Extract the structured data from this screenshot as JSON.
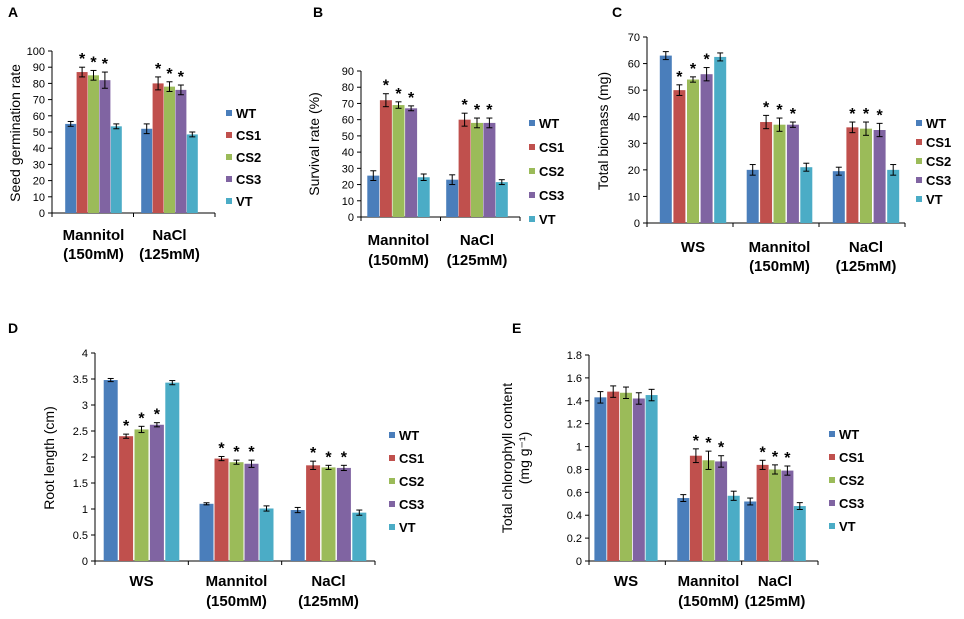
{
  "colors": {
    "WT": "#4A7EBB",
    "CS1": "#C0504D",
    "CS2": "#9BBB59",
    "CS3": "#8064A2",
    "VT": "#4BACC6",
    "axis": "#000000",
    "errorbar": "#000000"
  },
  "chart_data": [
    {
      "panel": "A",
      "type": "bar",
      "title": "",
      "xlabel": "",
      "ylabel": "Seed germination rate",
      "ylim": [
        0,
        100
      ],
      "ytick_step": 10,
      "yticks": [
        "0",
        "10",
        "20",
        "30",
        "40",
        "50",
        "60",
        "70",
        "80",
        "90",
        "100"
      ],
      "categories": [
        {
          "line1": "Mannitol",
          "line2": "(150mM)"
        },
        {
          "line1": "NaCl",
          "line2": "(125mM)"
        }
      ],
      "series": [
        {
          "name": "WT",
          "values": [
            55,
            52
          ],
          "errors": [
            1.5,
            3
          ]
        },
        {
          "name": "CS1",
          "values": [
            87,
            80
          ],
          "errors": [
            3,
            4
          ]
        },
        {
          "name": "CS2",
          "values": [
            85,
            78
          ],
          "errors": [
            3,
            3
          ]
        },
        {
          "name": "CS3",
          "values": [
            82,
            76
          ],
          "errors": [
            5,
            3
          ]
        },
        {
          "name": "VT",
          "values": [
            53.5,
            48.5
          ],
          "errors": [
            1.5,
            1.5
          ]
        }
      ],
      "significance": [
        {
          "series": "CS1",
          "category": 0,
          "label": "*"
        },
        {
          "series": "CS2",
          "category": 0,
          "label": "*"
        },
        {
          "series": "CS3",
          "category": 0,
          "label": "*"
        },
        {
          "series": "CS1",
          "category": 1,
          "label": "*"
        },
        {
          "series": "CS2",
          "category": 1,
          "label": "*"
        },
        {
          "series": "CS3",
          "category": 1,
          "label": "*"
        }
      ],
      "legend": [
        "WT",
        "CS1",
        "CS2",
        "CS3",
        "VT"
      ]
    },
    {
      "panel": "B",
      "type": "bar",
      "title": "",
      "xlabel": "",
      "ylabel": "Survival rate (%)",
      "ylim": [
        0,
        90
      ],
      "ytick_step": 10,
      "yticks": [
        "0",
        "10",
        "20",
        "30",
        "40",
        "50",
        "60",
        "70",
        "80",
        "90"
      ],
      "categories": [
        {
          "line1": "Mannitol",
          "line2": "(150mM)"
        },
        {
          "line1": "NaCl",
          "line2": "(125mM)"
        }
      ],
      "series": [
        {
          "name": "WT",
          "values": [
            25.5,
            23
          ],
          "errors": [
            3,
            3
          ]
        },
        {
          "name": "CS1",
          "values": [
            72,
            60
          ],
          "errors": [
            4,
            4
          ]
        },
        {
          "name": "CS2",
          "values": [
            69,
            58
          ],
          "errors": [
            2,
            3
          ]
        },
        {
          "name": "CS3",
          "values": [
            67,
            58
          ],
          "errors": [
            1.5,
            3
          ]
        },
        {
          "name": "VT",
          "values": [
            24.5,
            21.5
          ],
          "errors": [
            2,
            1.5
          ]
        }
      ],
      "significance": [
        {
          "series": "CS1",
          "category": 0,
          "label": "*"
        },
        {
          "series": "CS2",
          "category": 0,
          "label": "*"
        },
        {
          "series": "CS3",
          "category": 0,
          "label": "*"
        },
        {
          "series": "CS1",
          "category": 1,
          "label": "*"
        },
        {
          "series": "CS2",
          "category": 1,
          "label": "*"
        },
        {
          "series": "CS3",
          "category": 1,
          "label": "*"
        }
      ],
      "legend": [
        "WT",
        "CS1",
        "CS2",
        "CS3",
        "VT"
      ]
    },
    {
      "panel": "C",
      "type": "bar",
      "title": "",
      "xlabel": "",
      "ylabel": "Total biomass (mg)",
      "ylim": [
        0,
        70
      ],
      "ytick_step": 10,
      "yticks": [
        "0",
        "10",
        "20",
        "30",
        "40",
        "50",
        "60",
        "70"
      ],
      "categories": [
        {
          "line1": "WS",
          "line2": ""
        },
        {
          "line1": "Mannitol",
          "line2": "(150mM)"
        },
        {
          "line1": "NaCl",
          "line2": "(125mM)"
        }
      ],
      "series": [
        {
          "name": "WT",
          "values": [
            63,
            20,
            19.5
          ],
          "errors": [
            1.5,
            2,
            1.5
          ]
        },
        {
          "name": "CS1",
          "values": [
            50,
            38,
            36
          ],
          "errors": [
            2,
            2.5,
            2
          ]
        },
        {
          "name": "CS2",
          "values": [
            54,
            37,
            35.5
          ],
          "errors": [
            1,
            2.5,
            2.5
          ]
        },
        {
          "name": "CS3",
          "values": [
            56,
            37,
            35
          ],
          "errors": [
            2.5,
            1,
            2.5
          ]
        },
        {
          "name": "VT",
          "values": [
            62.5,
            21,
            20
          ],
          "errors": [
            1.5,
            1.5,
            2
          ]
        }
      ],
      "significance": [
        {
          "series": "CS1",
          "category": 0,
          "label": "*"
        },
        {
          "series": "CS2",
          "category": 0,
          "label": "*"
        },
        {
          "series": "CS3",
          "category": 0,
          "label": "*"
        },
        {
          "series": "CS1",
          "category": 1,
          "label": "*"
        },
        {
          "series": "CS2",
          "category": 1,
          "label": "*"
        },
        {
          "series": "CS3",
          "category": 1,
          "label": "*"
        },
        {
          "series": "CS1",
          "category": 2,
          "label": "*"
        },
        {
          "series": "CS2",
          "category": 2,
          "label": "*"
        },
        {
          "series": "CS3",
          "category": 2,
          "label": "*"
        }
      ],
      "legend": [
        "WT",
        "CS1",
        "CS2",
        "CS3",
        "VT"
      ]
    },
    {
      "panel": "D",
      "type": "bar",
      "title": "",
      "xlabel": "",
      "ylabel": "Root length (cm)",
      "ylim": [
        0,
        4
      ],
      "ytick_step": 0.5,
      "yticks": [
        "0",
        "0.5",
        "1",
        "1.5",
        "2",
        "2.5",
        "3",
        "3.5",
        "4"
      ],
      "categories": [
        {
          "line1": "WS",
          "line2": ""
        },
        {
          "line1": "Mannitol",
          "line2": "(150mM)"
        },
        {
          "line1": "NaCl",
          "line2": "(125mM)"
        }
      ],
      "series": [
        {
          "name": "WT",
          "values": [
            3.48,
            1.1,
            0.98
          ],
          "errors": [
            0.03,
            0.02,
            0.05
          ]
        },
        {
          "name": "CS1",
          "values": [
            2.4,
            1.97,
            1.84
          ],
          "errors": [
            0.04,
            0.04,
            0.08
          ]
        },
        {
          "name": "CS2",
          "values": [
            2.53,
            1.9,
            1.8
          ],
          "errors": [
            0.06,
            0.04,
            0.04
          ]
        },
        {
          "name": "CS3",
          "values": [
            2.62,
            1.87,
            1.79
          ],
          "errors": [
            0.04,
            0.07,
            0.05
          ]
        },
        {
          "name": "VT",
          "values": [
            3.43,
            1.01,
            0.93
          ],
          "errors": [
            0.04,
            0.05,
            0.05
          ]
        }
      ],
      "significance": [
        {
          "series": "CS1",
          "category": 0,
          "label": "*"
        },
        {
          "series": "CS2",
          "category": 0,
          "label": "*"
        },
        {
          "series": "CS3",
          "category": 0,
          "label": "*"
        },
        {
          "series": "CS1",
          "category": 1,
          "label": "*"
        },
        {
          "series": "CS2",
          "category": 1,
          "label": "*"
        },
        {
          "series": "CS3",
          "category": 1,
          "label": "*"
        },
        {
          "series": "CS1",
          "category": 2,
          "label": "*"
        },
        {
          "series": "CS2",
          "category": 2,
          "label": "*"
        },
        {
          "series": "CS3",
          "category": 2,
          "label": "*"
        }
      ],
      "legend": [
        "WT",
        "CS1",
        "CS2",
        "CS3",
        "VT"
      ]
    },
    {
      "panel": "E",
      "type": "bar",
      "title": "",
      "xlabel": "",
      "ylabel": "Total chlorophyll content",
      "ylabel_line2": "(mg g⁻¹)",
      "ylim": [
        0,
        1.8
      ],
      "ytick_step": 0.2,
      "yticks": [
        "0",
        "0.2",
        "0.4",
        "0.6",
        "0.8",
        "1",
        "1.2",
        "1.4",
        "1.6",
        "1.8"
      ],
      "categories": [
        {
          "line1": "WS",
          "line2": ""
        },
        {
          "line1": "Mannitol",
          "line2": "(150mM)"
        },
        {
          "line1": "NaCl",
          "line2": "(125mM)"
        }
      ],
      "series": [
        {
          "name": "WT",
          "values": [
            1.43,
            0.55,
            0.52
          ],
          "errors": [
            0.05,
            0.03,
            0.03
          ]
        },
        {
          "name": "CS1",
          "values": [
            1.48,
            0.92,
            0.84
          ],
          "errors": [
            0.05,
            0.06,
            0.04
          ]
        },
        {
          "name": "CS2",
          "values": [
            1.47,
            0.88,
            0.8
          ],
          "errors": [
            0.05,
            0.08,
            0.04
          ]
        },
        {
          "name": "CS3",
          "values": [
            1.42,
            0.87,
            0.79
          ],
          "errors": [
            0.05,
            0.05,
            0.04
          ]
        },
        {
          "name": "VT",
          "values": [
            1.45,
            0.57,
            0.48
          ],
          "errors": [
            0.05,
            0.04,
            0.03
          ]
        }
      ],
      "significance": [
        {
          "series": "CS1",
          "category": 1,
          "label": "*"
        },
        {
          "series": "CS2",
          "category": 1,
          "label": "*"
        },
        {
          "series": "CS3",
          "category": 1,
          "label": "*"
        },
        {
          "series": "CS1",
          "category": 2,
          "label": "*"
        },
        {
          "series": "CS2",
          "category": 2,
          "label": "*"
        },
        {
          "series": "CS3",
          "category": 2,
          "label": "*"
        }
      ],
      "legend": [
        "WT",
        "CS1",
        "CS2",
        "CS3",
        "VT"
      ]
    }
  ]
}
